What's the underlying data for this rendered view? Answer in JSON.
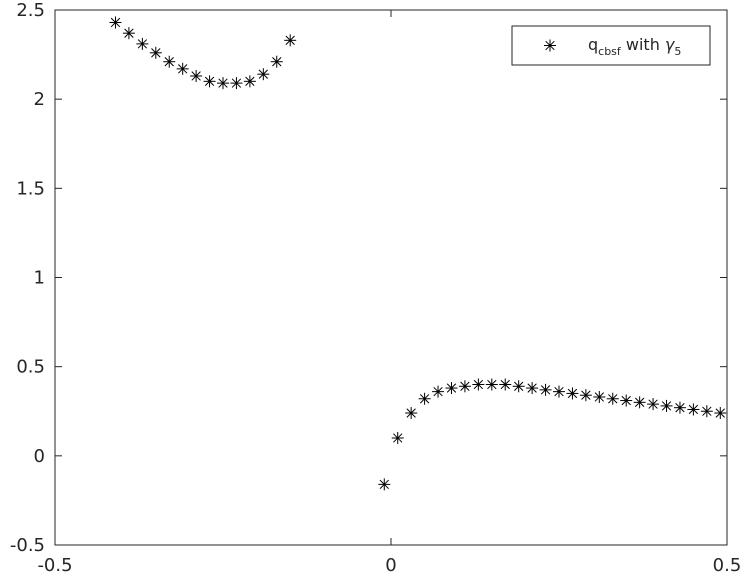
{
  "chart_data": {
    "type": "scatter",
    "marker": "asterisk",
    "marker_color": "#000000",
    "title": "",
    "xlabel": "",
    "ylabel": "",
    "xlim": [
      -0.5,
      0.5
    ],
    "ylim": [
      -0.5,
      2.5
    ],
    "grid": false,
    "legend_position": "top-right",
    "x_ticks": [
      -0.5,
      0,
      0.5
    ],
    "x_tick_labels": [
      "-0.5",
      "0",
      "0.5"
    ],
    "y_ticks": [
      -0.5,
      0,
      0.5,
      1,
      1.5,
      2,
      2.5
    ],
    "y_tick_labels": [
      "-0.5",
      "0",
      "0.5",
      "1",
      "1.5",
      "2",
      "2.5"
    ],
    "series": [
      {
        "name": "q_cbsf with γ_5",
        "legend_label": {
          "main": "q",
          "main_sub": "cbsf",
          "middle": " with ",
          "symbol": "γ",
          "symbol_sub": "5"
        },
        "points": [
          [
            -0.41,
            2.43
          ],
          [
            -0.39,
            2.37
          ],
          [
            -0.37,
            2.31
          ],
          [
            -0.35,
            2.26
          ],
          [
            -0.33,
            2.21
          ],
          [
            -0.31,
            2.17
          ],
          [
            -0.29,
            2.13
          ],
          [
            -0.27,
            2.1
          ],
          [
            -0.25,
            2.09
          ],
          [
            -0.23,
            2.09
          ],
          [
            -0.21,
            2.1
          ],
          [
            -0.19,
            2.14
          ],
          [
            -0.17,
            2.21
          ],
          [
            -0.15,
            2.33
          ],
          [
            -0.01,
            -0.16
          ],
          [
            0.01,
            0.1
          ],
          [
            0.03,
            0.24
          ],
          [
            0.05,
            0.32
          ],
          [
            0.07,
            0.36
          ],
          [
            0.09,
            0.38
          ],
          [
            0.11,
            0.39
          ],
          [
            0.13,
            0.4
          ],
          [
            0.15,
            0.4
          ],
          [
            0.17,
            0.4
          ],
          [
            0.19,
            0.39
          ],
          [
            0.21,
            0.38
          ],
          [
            0.23,
            0.37
          ],
          [
            0.25,
            0.36
          ],
          [
            0.27,
            0.35
          ],
          [
            0.29,
            0.34
          ],
          [
            0.31,
            0.33
          ],
          [
            0.33,
            0.32
          ],
          [
            0.35,
            0.31
          ],
          [
            0.37,
            0.3
          ],
          [
            0.39,
            0.29
          ],
          [
            0.41,
            0.28
          ],
          [
            0.43,
            0.27
          ],
          [
            0.45,
            0.26
          ],
          [
            0.47,
            0.25
          ],
          [
            0.49,
            0.24
          ]
        ]
      }
    ]
  }
}
